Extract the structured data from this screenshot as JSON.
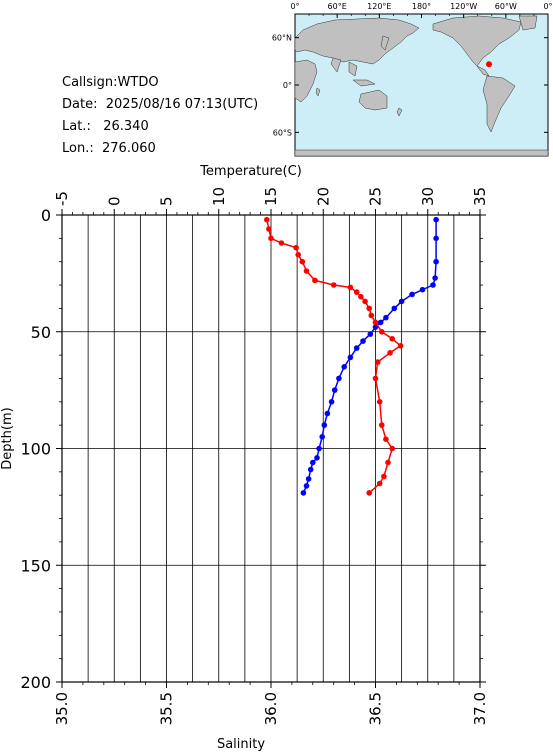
{
  "station": {
    "callsign_label": "Callsign:",
    "callsign": "WTDO",
    "date_label": "Date:",
    "date": "2025/08/16 07:13(UTC)",
    "lat_label": "Lat.:",
    "lat": "26.340",
    "lon_label": "Lon.:",
    "lon": "276.060"
  },
  "map": {
    "top_labels": [
      "0°",
      "60°E",
      "120°E",
      "180°",
      "120°W",
      "60°W",
      "0°"
    ],
    "left_labels": [
      "60°N",
      "0°",
      "60°S"
    ],
    "ocean_color": "#cdeef6",
    "land_color": "#c0c0c0",
    "marker_color": "#ff0000",
    "marker": {
      "lat": 26.34,
      "lon": 276.06
    }
  },
  "chart_data": {
    "type": "line",
    "top_axis_label": "Temperature(C)",
    "bottom_axis_label": "Salinity",
    "left_axis_label": "Depth(m)",
    "temperature_ticks": [
      "-5",
      "0",
      "5",
      "10",
      "15",
      "20",
      "25",
      "30",
      "35"
    ],
    "salinity_ticks": [
      "35.0",
      "35.5",
      "36.0",
      "36.5",
      "37.0"
    ],
    "depth_ticks": [
      "0",
      "50",
      "100",
      "150",
      "200"
    ],
    "temperature_range": [
      -5,
      35
    ],
    "salinity_range": [
      35.0,
      37.0
    ],
    "depth_range": [
      0,
      200
    ],
    "grid": true,
    "series": [
      {
        "kind": "temperature",
        "color": "#0000ff",
        "points": [
          [
            30.8,
            2
          ],
          [
            30.8,
            10
          ],
          [
            30.8,
            20
          ],
          [
            30.7,
            27
          ],
          [
            30.5,
            30
          ],
          [
            29.5,
            32
          ],
          [
            28.5,
            34
          ],
          [
            27.5,
            37
          ],
          [
            26.8,
            40
          ],
          [
            26.0,
            44
          ],
          [
            25.5,
            46
          ],
          [
            25.0,
            48
          ],
          [
            24.5,
            51
          ],
          [
            23.8,
            54
          ],
          [
            23.2,
            57
          ],
          [
            22.6,
            61
          ],
          [
            22.0,
            65
          ],
          [
            21.5,
            70
          ],
          [
            21.1,
            75
          ],
          [
            20.8,
            80
          ],
          [
            20.4,
            85
          ],
          [
            20.1,
            90
          ],
          [
            19.9,
            95
          ],
          [
            19.6,
            100
          ],
          [
            19.4,
            104
          ],
          [
            19.0,
            106
          ],
          [
            18.8,
            109
          ],
          [
            18.6,
            113
          ],
          [
            18.4,
            116
          ],
          [
            18.1,
            119
          ]
        ]
      },
      {
        "kind": "salinity",
        "color": "#ff0000",
        "points": [
          [
            35.98,
            2
          ],
          [
            35.99,
            6
          ],
          [
            36.0,
            10
          ],
          [
            36.05,
            12
          ],
          [
            36.12,
            14
          ],
          [
            36.13,
            17
          ],
          [
            36.15,
            20
          ],
          [
            36.17,
            24
          ],
          [
            36.21,
            28
          ],
          [
            36.3,
            30
          ],
          [
            36.38,
            31
          ],
          [
            36.41,
            33
          ],
          [
            36.43,
            35
          ],
          [
            36.45,
            37
          ],
          [
            36.47,
            40
          ],
          [
            36.48,
            43
          ],
          [
            36.5,
            46
          ],
          [
            36.53,
            50
          ],
          [
            36.58,
            53
          ],
          [
            36.62,
            56
          ],
          [
            36.57,
            59
          ],
          [
            36.51,
            63
          ],
          [
            36.5,
            70
          ],
          [
            36.52,
            80
          ],
          [
            36.53,
            90
          ],
          [
            36.55,
            96
          ],
          [
            36.58,
            100
          ],
          [
            36.56,
            106
          ],
          [
            36.54,
            112
          ],
          [
            36.52,
            115
          ],
          [
            36.47,
            119
          ]
        ]
      }
    ]
  }
}
